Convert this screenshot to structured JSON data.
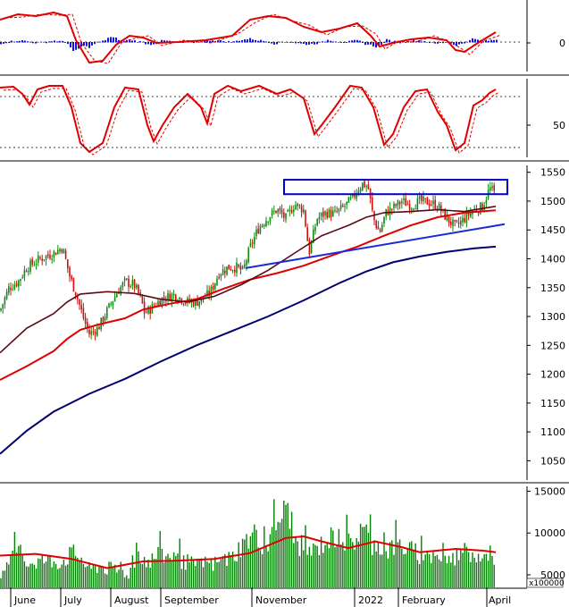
{
  "chart_data": {
    "type": "line",
    "x_tick_labels": [
      "June",
      "July",
      "August",
      "September",
      "November",
      "2022",
      "February",
      "April"
    ],
    "panels": [
      {
        "name": "macd",
        "y_tick_labels": [
          "0"
        ],
        "colors": {
          "macd": "#e00000",
          "signal": "#e00000",
          "histogram": "#1010e0"
        }
      },
      {
        "name": "stochastic",
        "y_tick_labels": [
          "50"
        ],
        "colors": {
          "k": "#e00000",
          "d": "#e00000"
        }
      },
      {
        "name": "price",
        "type": "candlestick",
        "y_tick_labels": [
          "1550",
          "1500",
          "1450",
          "1400",
          "1350",
          "1300",
          "1250",
          "1200",
          "1150",
          "1100",
          "1050"
        ],
        "ylim": [
          1015,
          1565
        ],
        "moving_average_colors": {
          "fast": "#5a0a14",
          "medium": "#e00000",
          "slow": "#00006e"
        },
        "annotations": {
          "box_color": "#0000d0",
          "trendline_color": "#1a2ad8"
        },
        "ma_slow": [
          [
            0,
            1062
          ],
          [
            30,
            1102
          ],
          [
            60,
            1135
          ],
          [
            100,
            1166
          ],
          [
            140,
            1192
          ],
          [
            180,
            1222
          ],
          [
            220,
            1250
          ],
          [
            260,
            1275
          ],
          [
            300,
            1300
          ],
          [
            340,
            1328
          ],
          [
            380,
            1358
          ],
          [
            410,
            1378
          ],
          [
            440,
            1394
          ],
          [
            470,
            1404
          ],
          [
            500,
            1412
          ],
          [
            530,
            1418
          ],
          [
            555,
            1421
          ]
        ],
        "ma_medium": [
          [
            0,
            1190
          ],
          [
            30,
            1214
          ],
          [
            60,
            1240
          ],
          [
            75,
            1261
          ],
          [
            90,
            1277
          ],
          [
            110,
            1286
          ],
          [
            140,
            1297
          ],
          [
            160,
            1312
          ],
          [
            190,
            1322
          ],
          [
            220,
            1330
          ],
          [
            250,
            1348
          ],
          [
            280,
            1364
          ],
          [
            310,
            1375
          ],
          [
            340,
            1388
          ],
          [
            370,
            1405
          ],
          [
            400,
            1421
          ],
          [
            430,
            1440
          ],
          [
            460,
            1458
          ],
          [
            490,
            1472
          ],
          [
            520,
            1480
          ],
          [
            555,
            1484
          ]
        ],
        "ma_fast": [
          [
            0,
            1237
          ],
          [
            30,
            1280
          ],
          [
            60,
            1305
          ],
          [
            75,
            1325
          ],
          [
            90,
            1339
          ],
          [
            120,
            1343
          ],
          [
            150,
            1340
          ],
          [
            180,
            1330
          ],
          [
            210,
            1325
          ],
          [
            240,
            1335
          ],
          [
            270,
            1355
          ],
          [
            300,
            1380
          ],
          [
            330,
            1410
          ],
          [
            360,
            1440
          ],
          [
            390,
            1458
          ],
          [
            410,
            1472
          ],
          [
            430,
            1480
          ],
          [
            460,
            1482
          ],
          [
            490,
            1485
          ],
          [
            520,
            1482
          ],
          [
            555,
            1491
          ]
        ],
        "close_path": [
          [
            0,
            1310
          ],
          [
            10,
            1350
          ],
          [
            20,
            1360
          ],
          [
            30,
            1385
          ],
          [
            45,
            1400
          ],
          [
            60,
            1410
          ],
          [
            70,
            1420
          ],
          [
            78,
            1370
          ],
          [
            85,
            1340
          ],
          [
            95,
            1290
          ],
          [
            100,
            1270
          ],
          [
            110,
            1280
          ],
          [
            120,
            1310
          ],
          [
            130,
            1340
          ],
          [
            140,
            1360
          ],
          [
            150,
            1355
          ],
          [
            158,
            1330
          ],
          [
            162,
            1305
          ],
          [
            170,
            1315
          ],
          [
            180,
            1330
          ],
          [
            195,
            1338
          ],
          [
            210,
            1325
          ],
          [
            220,
            1325
          ],
          [
            235,
            1340
          ],
          [
            245,
            1375
          ],
          [
            255,
            1385
          ],
          [
            265,
            1385
          ],
          [
            272,
            1378
          ],
          [
            280,
            1420
          ],
          [
            290,
            1455
          ],
          [
            300,
            1472
          ],
          [
            310,
            1485
          ],
          [
            320,
            1470
          ],
          [
            330,
            1495
          ],
          [
            340,
            1485
          ],
          [
            346,
            1410
          ],
          [
            355,
            1470
          ],
          [
            365,
            1480
          ],
          [
            375,
            1478
          ],
          [
            385,
            1490
          ],
          [
            395,
            1505
          ],
          [
            400,
            1520
          ],
          [
            406,
            1530
          ],
          [
            412,
            1525
          ],
          [
            418,
            1470
          ],
          [
            425,
            1445
          ],
          [
            432,
            1480
          ],
          [
            440,
            1488
          ],
          [
            450,
            1500
          ],
          [
            460,
            1492
          ],
          [
            470,
            1500
          ],
          [
            480,
            1498
          ],
          [
            490,
            1492
          ],
          [
            500,
            1470
          ],
          [
            510,
            1455
          ],
          [
            520,
            1470
          ],
          [
            530,
            1485
          ],
          [
            540,
            1490
          ],
          [
            548,
            1522
          ],
          [
            555,
            1512
          ]
        ]
      },
      {
        "name": "volume",
        "type": "bar",
        "y_tick_labels": [
          "15000",
          "10000",
          "5000"
        ],
        "unit_label": "x100000",
        "ylim": [
          3500,
          15800
        ],
        "colors": {
          "bars": "#008000",
          "average": "#e00000"
        },
        "volume_avg": [
          [
            0,
            7300
          ],
          [
            40,
            7500
          ],
          [
            80,
            6900
          ],
          [
            120,
            5800
          ],
          [
            160,
            6600
          ],
          [
            200,
            6700
          ],
          [
            240,
            6900
          ],
          [
            280,
            7600
          ],
          [
            320,
            9400
          ],
          [
            340,
            9600
          ],
          [
            360,
            9000
          ],
          [
            390,
            8200
          ],
          [
            420,
            9000
          ],
          [
            450,
            8300
          ],
          [
            470,
            7700
          ],
          [
            490,
            7900
          ],
          [
            510,
            8100
          ],
          [
            540,
            7900
          ],
          [
            555,
            7700
          ]
        ],
        "volume_envelope": [
          [
            0,
            6000
          ],
          [
            10,
            7000
          ],
          [
            20,
            9500
          ],
          [
            30,
            7500
          ],
          [
            50,
            7800
          ],
          [
            70,
            7600
          ],
          [
            80,
            8800
          ],
          [
            90,
            8200
          ],
          [
            100,
            6500
          ],
          [
            110,
            7000
          ],
          [
            130,
            6400
          ],
          [
            145,
            6000
          ],
          [
            155,
            9000
          ],
          [
            165,
            7500
          ],
          [
            180,
            8600
          ],
          [
            200,
            8000
          ],
          [
            220,
            7000
          ],
          [
            240,
            7300
          ],
          [
            260,
            8200
          ],
          [
            270,
            9800
          ],
          [
            280,
            11000
          ],
          [
            290,
            10500
          ],
          [
            300,
            9800
          ],
          [
            310,
            13000
          ],
          [
            318,
            14800
          ],
          [
            326,
            11000
          ],
          [
            340,
            9500
          ],
          [
            350,
            9000
          ],
          [
            365,
            10500
          ],
          [
            378,
            11300
          ],
          [
            392,
            10000
          ],
          [
            408,
            12000
          ],
          [
            418,
            10000
          ],
          [
            432,
            9200
          ],
          [
            446,
            10000
          ],
          [
            460,
            9200
          ],
          [
            476,
            8200
          ],
          [
            490,
            8300
          ],
          [
            505,
            7800
          ],
          [
            520,
            9200
          ],
          [
            540,
            8600
          ],
          [
            550,
            9000
          ],
          [
            555,
            5200
          ]
        ]
      }
    ]
  }
}
